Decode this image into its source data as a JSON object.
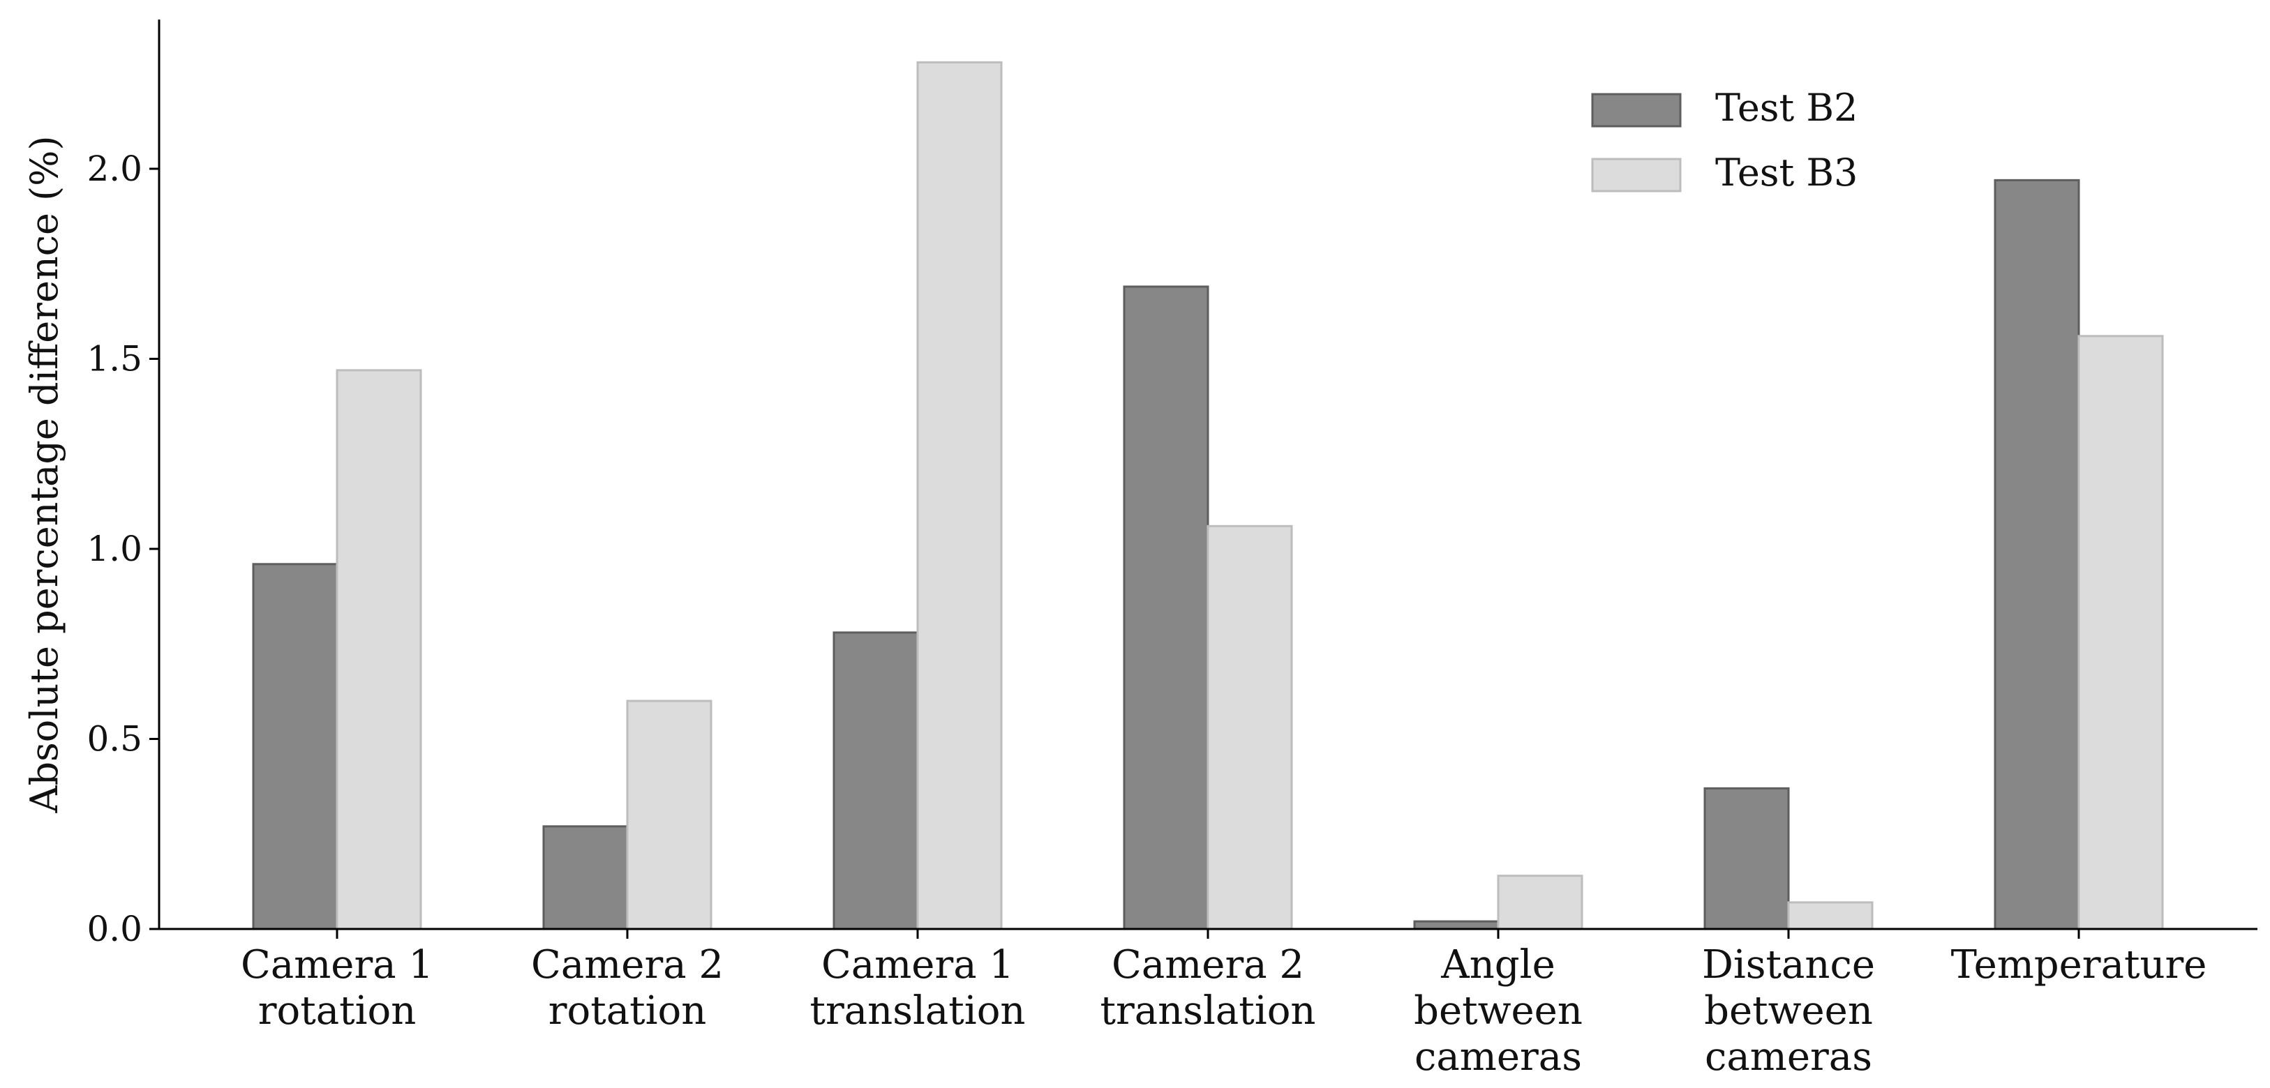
{
  "chart_data": {
    "type": "bar",
    "title": "",
    "xlabel": "",
    "ylabel": "Absolute percentage difference (%)",
    "ylim": [
      0,
      2.4
    ],
    "yticks": [
      "0.0",
      "0.5",
      "1.0",
      "1.5",
      "2.0"
    ],
    "ytick_values": [
      0,
      0.5,
      1.0,
      1.5,
      2.0
    ],
    "grid": false,
    "legend_position": "top-right",
    "categories": [
      [
        "Camera 1",
        "rotation"
      ],
      [
        "Camera 2",
        "rotation"
      ],
      [
        "Camera 1",
        "translation"
      ],
      [
        "Camera 2",
        "translation"
      ],
      [
        "Angle",
        "between",
        "cameras"
      ],
      [
        "Distance",
        "between",
        "cameras"
      ],
      [
        "Temperature"
      ]
    ],
    "series": [
      {
        "name": "Test B2",
        "color": "#878787",
        "stroke": "#5e5e5e",
        "values": [
          0.96,
          0.27,
          0.78,
          1.69,
          0.02,
          0.37,
          1.97
        ]
      },
      {
        "name": "Test B3",
        "color": "#dcdcdc",
        "stroke": "#bdbdbd",
        "values": [
          1.47,
          0.6,
          2.28,
          1.06,
          0.14,
          0.07,
          1.56
        ]
      }
    ]
  }
}
